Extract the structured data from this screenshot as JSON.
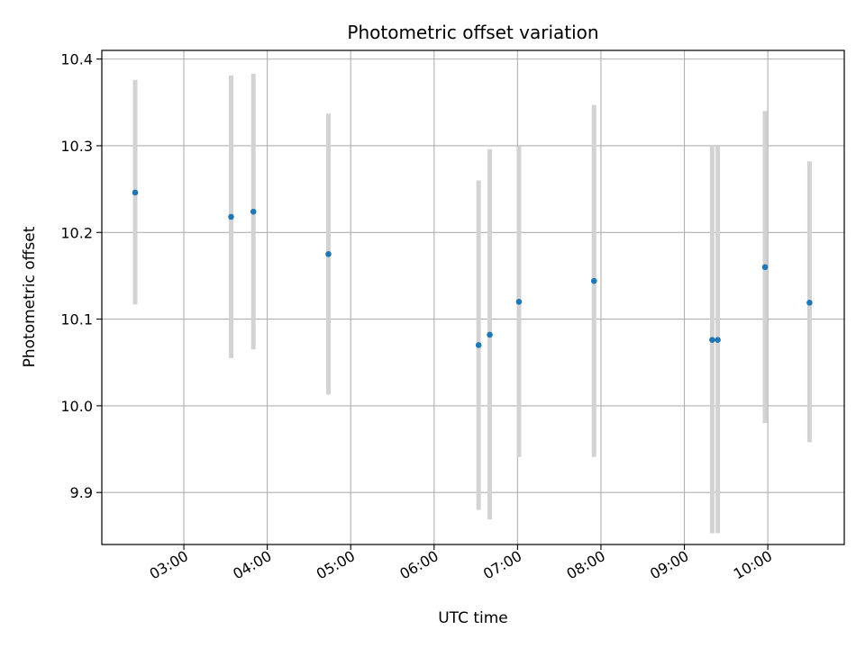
{
  "chart_data": {
    "type": "scatter",
    "title": "Photometric offset variation",
    "xlabel": "UTC time",
    "ylabel": "Photometric offset",
    "x_tick_labels": [
      "03:00",
      "04:00",
      "05:00",
      "06:00",
      "07:00",
      "08:00",
      "09:00",
      "10:00"
    ],
    "x_ticks_hours": [
      3,
      4,
      5,
      6,
      7,
      8,
      9,
      10
    ],
    "y_tick_labels": [
      "9.9",
      "10.0",
      "10.1",
      "10.2",
      "10.3",
      "10.4"
    ],
    "y_ticks": [
      9.9,
      10.0,
      10.1,
      10.2,
      10.3,
      10.4
    ],
    "xlim": [
      "02:01",
      "10:55"
    ],
    "ylim": [
      9.84,
      10.41
    ],
    "grid": true,
    "colors": {
      "point": "#1f77b4",
      "errorbar": "#d3d3d3",
      "grid": "#b0b0b0"
    },
    "points": [
      {
        "x": "02:25",
        "y": 10.246,
        "err_low": 10.117,
        "err_high": 10.376
      },
      {
        "x": "03:34",
        "y": 10.218,
        "err_low": 10.055,
        "err_high": 10.381
      },
      {
        "x": "03:50",
        "y": 10.224,
        "err_low": 10.065,
        "err_high": 10.383
      },
      {
        "x": "04:44",
        "y": 10.175,
        "err_low": 10.013,
        "err_high": 10.337
      },
      {
        "x": "06:32",
        "y": 10.07,
        "err_low": 9.88,
        "err_high": 10.26
      },
      {
        "x": "06:40",
        "y": 10.082,
        "err_low": 9.869,
        "err_high": 10.296
      },
      {
        "x": "07:01",
        "y": 10.12,
        "err_low": 9.941,
        "err_high": 10.299
      },
      {
        "x": "07:55",
        "y": 10.144,
        "err_low": 9.941,
        "err_high": 10.347
      },
      {
        "x": "09:20",
        "y": 10.076,
        "err_low": 9.853,
        "err_high": 10.299
      },
      {
        "x": "09:24",
        "y": 10.076,
        "err_low": 9.853,
        "err_high": 10.299
      },
      {
        "x": "09:58",
        "y": 10.16,
        "err_low": 9.98,
        "err_high": 10.34
      },
      {
        "x": "10:30",
        "y": 10.119,
        "err_low": 9.958,
        "err_high": 10.282
      }
    ]
  }
}
